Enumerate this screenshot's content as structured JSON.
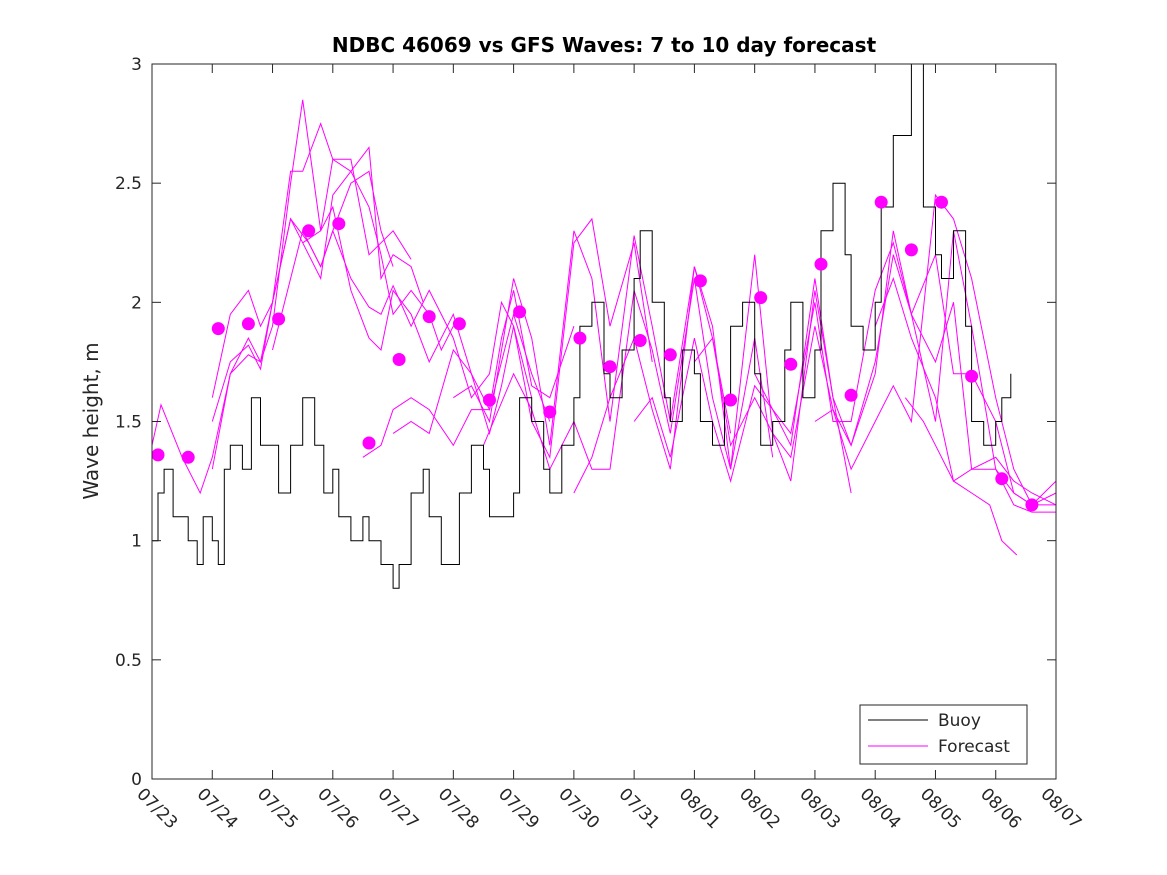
{
  "chart_data": {
    "type": "line",
    "title": "NDBC 46069 vs GFS Waves: 7 to 10 day forecast",
    "xlabel": "",
    "ylabel": "Wave height, m",
    "x_unit": "day",
    "x_ticks": [
      "07/23",
      "07/24",
      "07/25",
      "07/26",
      "07/27",
      "07/28",
      "07/29",
      "07/30",
      "07/31",
      "08/01",
      "08/02",
      "08/03",
      "08/04",
      "08/05",
      "08/06",
      "08/07"
    ],
    "y_ticks": [
      "0",
      "0.5",
      "1",
      "1.5",
      "2",
      "2.5",
      "3"
    ],
    "xlim": [
      0,
      15
    ],
    "ylim": [
      0,
      3
    ],
    "grid": false,
    "legend": {
      "position": "bottom-right",
      "entries": [
        "Buoy",
        "Forecast"
      ]
    },
    "colors": {
      "buoy": "#000000",
      "forecast": "#ff00ff",
      "axis": "#262626"
    },
    "series": [
      {
        "name": "Buoy",
        "x": [
          0,
          0.1,
          0.2,
          0.35,
          0.5,
          0.6,
          0.75,
          0.85,
          1.0,
          1.1,
          1.2,
          1.3,
          1.5,
          1.65,
          1.8,
          2.0,
          2.1,
          2.3,
          2.5,
          2.7,
          2.85,
          3.0,
          3.1,
          3.3,
          3.5,
          3.6,
          3.8,
          4.0,
          4.1,
          4.3,
          4.5,
          4.6,
          4.8,
          5.0,
          5.1,
          5.3,
          5.5,
          5.6,
          5.8,
          6.0,
          6.1,
          6.3,
          6.5,
          6.6,
          6.8,
          7.0,
          7.1,
          7.3,
          7.5,
          7.6,
          7.8,
          8.0,
          8.1,
          8.3,
          8.5,
          8.6,
          8.8,
          9.0,
          9.1,
          9.3,
          9.5,
          9.6,
          9.8,
          10.0,
          10.1,
          10.3,
          10.5,
          10.6,
          10.8,
          11.0,
          11.1,
          11.3,
          11.5,
          11.6,
          11.8,
          12.0,
          12.1,
          12.3,
          12.6,
          12.8,
          13.0,
          13.1,
          13.3,
          13.5,
          13.6,
          13.8,
          14.0,
          14.1,
          14.25
        ],
        "y": [
          1.0,
          1.2,
          1.3,
          1.1,
          1.1,
          1.0,
          0.9,
          1.1,
          1.0,
          0.9,
          1.3,
          1.4,
          1.3,
          1.6,
          1.4,
          1.4,
          1.2,
          1.4,
          1.6,
          1.4,
          1.2,
          1.3,
          1.1,
          1.0,
          1.1,
          1.0,
          0.9,
          0.8,
          0.9,
          1.2,
          1.3,
          1.1,
          0.9,
          0.9,
          1.2,
          1.4,
          1.3,
          1.1,
          1.1,
          1.2,
          1.6,
          1.5,
          1.3,
          1.2,
          1.4,
          1.6,
          1.9,
          2.0,
          1.7,
          1.6,
          1.8,
          2.1,
          2.3,
          2.0,
          1.6,
          1.5,
          1.8,
          1.7,
          1.5,
          1.4,
          1.6,
          1.9,
          2.0,
          1.7,
          1.4,
          1.5,
          1.8,
          2.0,
          1.6,
          1.8,
          2.3,
          2.5,
          2.2,
          1.9,
          1.8,
          2.0,
          2.4,
          2.7,
          3.0,
          2.4,
          2.2,
          2.1,
          2.3,
          1.9,
          1.5,
          1.4,
          1.5,
          1.6,
          1.7
        ]
      },
      {
        "name": "Forecast",
        "lines": [
          {
            "x": [
              0,
              0.15,
              0.5,
              0.8,
              1.0,
              1.3,
              1.6,
              1.8,
              2.0,
              2.3,
              2.6,
              2.8,
              3.0,
              3.3,
              3.6,
              3.8,
              4.0
            ],
            "y": [
              1.4,
              1.57,
              1.35,
              1.2,
              1.35,
              1.7,
              1.78,
              1.75,
              2.0,
              2.35,
              2.25,
              2.15,
              2.3,
              2.5,
              2.55,
              2.3,
              2.15
            ]
          },
          {
            "x": [
              1.0,
              1.3,
              1.6,
              1.8,
              2.0,
              2.3,
              2.5,
              2.8,
              3.0,
              3.3,
              3.6,
              3.8,
              4.0,
              4.3,
              4.6,
              4.8,
              5.0
            ],
            "y": [
              1.3,
              1.7,
              1.85,
              1.75,
              1.9,
              2.5,
              2.85,
              2.3,
              2.6,
              2.55,
              2.4,
              2.2,
              1.95,
              2.05,
              1.95,
              1.8,
              1.9
            ]
          },
          {
            "x": [
              1.0,
              1.3,
              1.6,
              1.8,
              2.0,
              2.3,
              2.5,
              2.8,
              3.0,
              3.3,
              3.6,
              3.8,
              4.0,
              4.3
            ],
            "y": [
              1.6,
              1.95,
              2.05,
              1.9,
              2.0,
              2.55,
              2.55,
              2.75,
              2.6,
              2.6,
              2.2,
              2.25,
              2.3,
              2.18
            ]
          },
          {
            "x": [
              1.0,
              1.3,
              1.6,
              1.8,
              2.0,
              2.3,
              2.5,
              2.8,
              3.0,
              3.3,
              3.6,
              3.8,
              4.0,
              4.3,
              4.5
            ],
            "y": [
              1.5,
              1.75,
              1.82,
              1.72,
              2.0,
              2.35,
              2.25,
              2.1,
              2.45,
              2.55,
              2.65,
              2.1,
              2.2,
              2.15,
              2.0
            ]
          },
          {
            "x": [
              2.0,
              2.3,
              2.5,
              2.8,
              3.0,
              3.3,
              3.6,
              3.8,
              4.0,
              4.3,
              4.6,
              5.0,
              5.3,
              5.6,
              5.8,
              6.0,
              6.3
            ],
            "y": [
              1.8,
              2.1,
              2.3,
              2.15,
              2.3,
              2.1,
              1.98,
              1.95,
              2.07,
              1.9,
              2.05,
              1.85,
              1.6,
              1.7,
              2.0,
              1.9,
              1.6
            ]
          },
          {
            "x": [
              2.5,
              2.8,
              3.0,
              3.3,
              3.6,
              3.8,
              4.0,
              4.3,
              4.6,
              5.0,
              5.3,
              5.6,
              5.8,
              6.0,
              6.3,
              6.6
            ],
            "y": [
              2.25,
              2.3,
              2.4,
              2.05,
              1.85,
              1.8,
              2.05,
              1.95,
              1.75,
              1.95,
              1.7,
              1.55,
              1.75,
              1.95,
              1.7,
              1.5
            ]
          },
          {
            "x": [
              3.5,
              3.8,
              4.0,
              4.3,
              4.6,
              5.0,
              5.3,
              5.6,
              5.8,
              6.0,
              6.3,
              6.6,
              7.0
            ],
            "y": [
              1.35,
              1.4,
              1.55,
              1.6,
              1.55,
              1.4,
              1.55,
              1.55,
              1.85,
              2.05,
              1.65,
              1.6,
              1.9
            ]
          },
          {
            "x": [
              4.0,
              4.3,
              4.6,
              5.0,
              5.3,
              5.6,
              5.8,
              6.0,
              6.3,
              6.6,
              7.0,
              7.3,
              7.6,
              8.0,
              8.3
            ],
            "y": [
              1.45,
              1.5,
              1.45,
              1.8,
              1.7,
              1.45,
              1.65,
              1.9,
              1.5,
              1.35,
              2.25,
              2.35,
              1.9,
              2.25,
              1.75
            ]
          },
          {
            "x": [
              5.0,
              5.3,
              5.6,
              6.0,
              6.3,
              6.6,
              7.0,
              7.3,
              7.6,
              8.0,
              8.3,
              8.6,
              9.0,
              9.3,
              9.6
            ],
            "y": [
              1.6,
              1.65,
              1.5,
              2.1,
              1.85,
              1.4,
              2.3,
              2.1,
              1.5,
              2.28,
              1.9,
              1.5,
              2.15,
              1.85,
              1.45
            ]
          },
          {
            "x": [
              5.5,
              6.0,
              6.3,
              6.6,
              7.0,
              7.3,
              7.6,
              8.0,
              8.3,
              8.6,
              9.0,
              9.3,
              9.6,
              10.0,
              10.3
            ],
            "y": [
              1.4,
              1.7,
              1.55,
              1.3,
              1.5,
              1.3,
              1.3,
              2.05,
              1.8,
              1.45,
              2.1,
              1.6,
              1.3,
              1.85,
              1.35
            ]
          },
          {
            "x": [
              7.0,
              7.3,
              7.6,
              8.0,
              8.3,
              8.6,
              9.0,
              9.3,
              9.6,
              10.0,
              10.3,
              10.6,
              11.0,
              11.3,
              11.6
            ],
            "y": [
              1.2,
              1.35,
              1.6,
              1.85,
              1.55,
              1.3,
              2.15,
              1.9,
              1.3,
              2.2,
              1.45,
              1.25,
              2.05,
              1.6,
              1.2
            ]
          },
          {
            "x": [
              8.0,
              8.3,
              8.6,
              9.0,
              9.3,
              9.6,
              10.0,
              10.3,
              10.6,
              11.0,
              11.3,
              11.6,
              12.0,
              12.3,
              12.6,
              13.0,
              13.3,
              13.6,
              14.0,
              14.3,
              14.6,
              15.0
            ],
            "y": [
              1.5,
              1.6,
              1.35,
              1.85,
              1.5,
              1.25,
              1.65,
              1.55,
              1.4,
              2.1,
              1.6,
              1.4,
              1.75,
              2.2,
              1.95,
              1.5,
              2.3,
              1.9,
              1.3,
              1.2,
              1.15,
              1.2
            ]
          },
          {
            "x": [
              9.0,
              9.3,
              9.6,
              10.0,
              10.3,
              10.6,
              11.0,
              11.3,
              11.6,
              12.0,
              12.3,
              12.6,
              13.0,
              13.3,
              13.6,
              14.0,
              14.3,
              14.6,
              15.0
            ],
            "y": [
              1.75,
              1.85,
              1.4,
              1.6,
              1.45,
              1.35,
              1.9,
              1.55,
              1.3,
              1.5,
              1.65,
              1.5,
              2.45,
              2.35,
              2.1,
              1.6,
              1.3,
              1.15,
              1.25
            ]
          },
          {
            "x": [
              10.0,
              10.3,
              10.6,
              11.0,
              11.3,
              11.6,
              12.0,
              12.3,
              12.6,
              13.0,
              13.3,
              13.6,
              14.0,
              14.3,
              14.6,
              15.0
            ],
            "y": [
              1.7,
              1.55,
              1.45,
              2.0,
              1.5,
              1.5,
              2.05,
              2.25,
              1.95,
              2.2,
              1.7,
              1.7,
              1.5,
              1.2,
              1.15,
              1.15
            ]
          },
          {
            "x": [
              11.0,
              11.3,
              11.6,
              12.0,
              12.3,
              12.6,
              13.0,
              13.3,
              13.6,
              14.0,
              14.3,
              14.6,
              15.0
            ],
            "y": [
              1.5,
              1.55,
              1.4,
              1.7,
              2.3,
              1.95,
              1.75,
              2.0,
              1.3,
              1.35,
              1.25,
              1.2,
              1.15
            ]
          },
          {
            "x": [
              12.0,
              12.3,
              12.6,
              13.0,
              13.3,
              13.6,
              14.0,
              14.3,
              14.6,
              15.0
            ],
            "y": [
              1.9,
              2.1,
              1.85,
              1.6,
              1.25,
              1.3,
              1.3,
              1.15,
              1.12,
              1.12
            ]
          },
          {
            "x": [
              12.5,
              12.8,
              13.0,
              13.3,
              13.6,
              13.9,
              14.1,
              14.35
            ],
            "y": [
              1.6,
              1.5,
              1.4,
              1.25,
              1.2,
              1.15,
              1.0,
              0.94
            ]
          }
        ]
      }
    ],
    "markers": {
      "x": [
        0.1,
        0.6,
        1.1,
        1.6,
        2.1,
        2.6,
        3.1,
        3.6,
        4.1,
        4.6,
        5.1,
        5.6,
        6.1,
        6.6,
        7.1,
        7.6,
        8.1,
        8.6,
        9.1,
        9.6,
        10.1,
        10.6,
        11.1,
        11.6,
        12.1,
        12.6,
        13.1,
        13.6,
        14.1,
        14.6
      ],
      "y": [
        1.36,
        1.35,
        1.89,
        1.91,
        1.93,
        2.3,
        2.33,
        1.41,
        1.76,
        1.94,
        1.91,
        1.59,
        1.96,
        1.54,
        1.85,
        1.73,
        1.84,
        1.78,
        2.09,
        1.59,
        2.02,
        1.74,
        2.16,
        1.61,
        2.42,
        2.22,
        2.42,
        1.69,
        1.26,
        1.15
      ]
    }
  }
}
